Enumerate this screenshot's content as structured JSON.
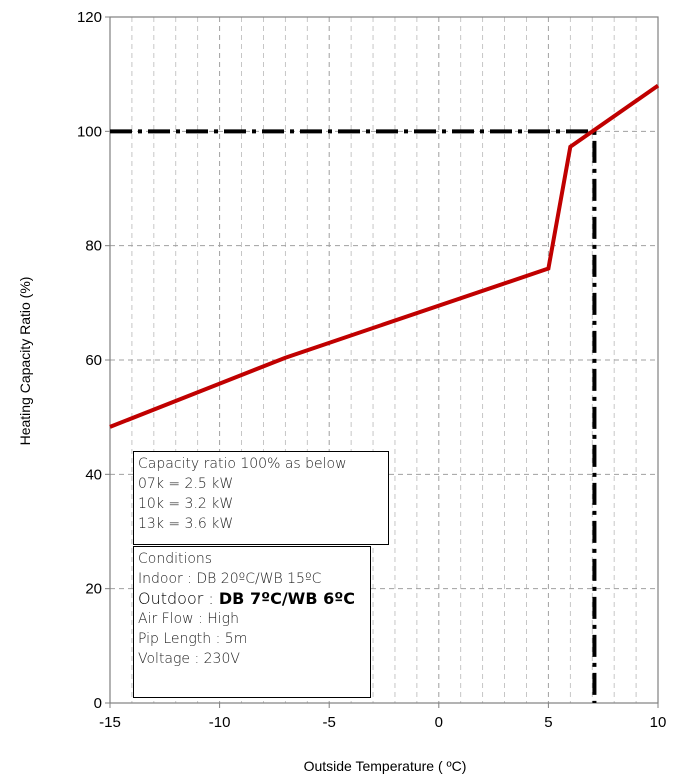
{
  "chart_data": {
    "type": "line",
    "xlabel": "Outside Temperature ( ºC)",
    "ylabel": "Heating Capacity Ratio (%)",
    "xlim": [
      -15,
      10
    ],
    "ylim": [
      0,
      120
    ],
    "x_major_ticks": [
      -15,
      -10,
      -5,
      0,
      5,
      10
    ],
    "x_tick_labels": [
      "-15",
      "-10",
      "-5",
      "0",
      "5",
      "10"
    ],
    "y_major_ticks": [
      0,
      20,
      40,
      60,
      80,
      100,
      120
    ],
    "y_tick_labels": [
      "0",
      "20",
      "40",
      "60",
      "80",
      "100",
      "120"
    ],
    "grid": true,
    "series": [
      {
        "color": "#c00000",
        "style": "solid",
        "x": [
          -15,
          -7,
          5,
          6,
          10
        ],
        "y": [
          48.3,
          60.4,
          76,
          97.3,
          108
        ]
      }
    ],
    "reference_lines": [
      {
        "color": "#000000",
        "style": "dash-dot",
        "x": [
          -15,
          7.1,
          7.1
        ],
        "y": [
          100,
          100,
          0
        ]
      }
    ]
  },
  "annotations": {
    "capacity": {
      "lines": [
        "Capacity ratio 100% as below",
        "07k = 2.5 kW",
        "10k = 3.2 kW",
        "13k = 3.6 kW"
      ]
    },
    "conditions": {
      "title": "Conditions",
      "indoor": "Indoor : DB 20ºC/WB 15ºC",
      "outdoor_label": "Outdoor : ",
      "outdoor_value": "DB 7ºC/WB 6ºC",
      "air_flow": "Air Flow : High",
      "pipe_length": "Pip Length : 5m",
      "voltage": "Voltage : 230V"
    }
  }
}
